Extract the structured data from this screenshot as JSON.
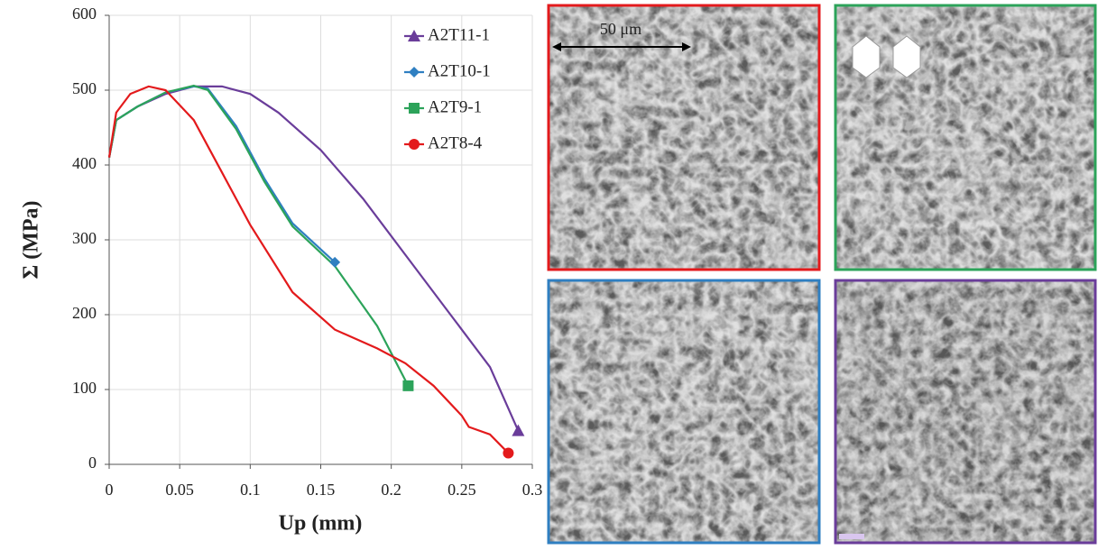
{
  "chart_data": {
    "type": "line",
    "xlabel": "Up (mm)",
    "ylabel": "Σ (MPa)",
    "xlim": [
      0,
      0.3
    ],
    "ylim": [
      0,
      600
    ],
    "xticks": [
      0,
      0.05,
      0.1,
      0.15,
      0.2,
      0.25,
      0.3
    ],
    "yticks": [
      0,
      100,
      200,
      300,
      400,
      500,
      600
    ],
    "grid": true,
    "legend": "top-right",
    "series": [
      {
        "name": "A2T11-1",
        "color": "#6a3d9a",
        "marker": "triangle",
        "x": [
          0,
          0.005,
          0.02,
          0.04,
          0.06,
          0.08,
          0.1,
          0.12,
          0.15,
          0.18,
          0.21,
          0.24,
          0.27,
          0.29
        ],
        "values": [
          410,
          460,
          478,
          495,
          505,
          505,
          495,
          470,
          420,
          355,
          280,
          205,
          130,
          45
        ]
      },
      {
        "name": "A2T10-1",
        "color": "#2f7fc1",
        "marker": "diamond",
        "x": [
          0,
          0.005,
          0.02,
          0.04,
          0.06,
          0.07,
          0.09,
          0.11,
          0.13,
          0.16
        ],
        "values": [
          410,
          460,
          478,
          497,
          505,
          502,
          452,
          382,
          322,
          270
        ]
      },
      {
        "name": "A2T9-1",
        "color": "#2ca35a",
        "marker": "square",
        "x": [
          0,
          0.005,
          0.02,
          0.04,
          0.06,
          0.07,
          0.09,
          0.11,
          0.13,
          0.16,
          0.19,
          0.212
        ],
        "values": [
          410,
          460,
          478,
          497,
          506,
          500,
          448,
          378,
          318,
          265,
          185,
          105
        ]
      },
      {
        "name": "A2T8-4",
        "color": "#e31a1c",
        "marker": "circle",
        "x": [
          0,
          0.005,
          0.015,
          0.028,
          0.04,
          0.06,
          0.08,
          0.1,
          0.13,
          0.16,
          0.19,
          0.21,
          0.23,
          0.25,
          0.255,
          0.27,
          0.283
        ],
        "values": [
          410,
          470,
          495,
          505,
          500,
          460,
          390,
          320,
          230,
          180,
          155,
          135,
          105,
          65,
          50,
          40,
          15
        ]
      }
    ]
  },
  "images": {
    "scale_bar": "50 μm"
  }
}
